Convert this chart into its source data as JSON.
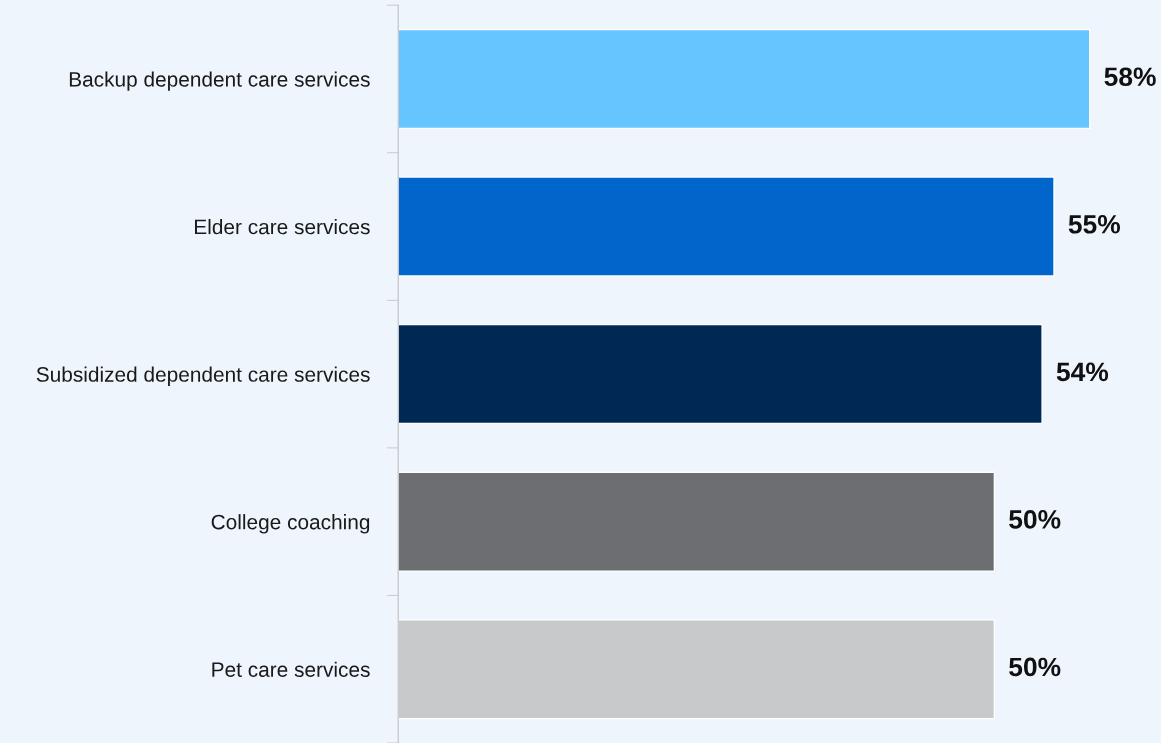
{
  "chart_data": {
    "type": "bar",
    "orientation": "horizontal",
    "categories": [
      "Backup dependent care services",
      "Elder care services",
      "Subsidized dependent care services",
      "College coaching",
      "Pet care services"
    ],
    "values": [
      58,
      55,
      54,
      50,
      50
    ],
    "colors": [
      "#66c4ff",
      "#0066cc",
      "#002855",
      "#6d6e71",
      "#c8c9cb"
    ],
    "value_labels": [
      "58%",
      "55%",
      "54%",
      "50%",
      "50%"
    ],
    "grid": false,
    "legend": false
  }
}
